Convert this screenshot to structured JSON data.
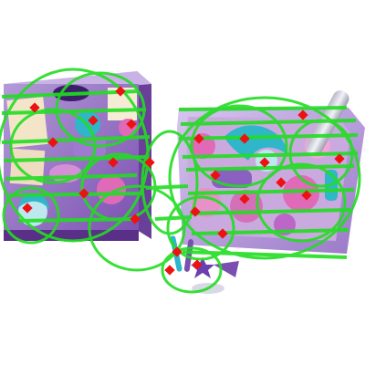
{
  "image": {
    "subject": "toy-playset-packaging-with-tracking-overlay",
    "colors": {
      "background": "#ffffff",
      "overlay_green": "#22dd22",
      "marker_red": "#ee1111",
      "box_purple": "#8c5fbf",
      "box_lilac": "#c9b3e6",
      "tray_teal": "#2fb6c9",
      "tray_pink": "#e06ab8",
      "card_cream": "#f3e6c8"
    }
  },
  "markers": [
    {
      "id": "m1"
    },
    {
      "id": "m2"
    },
    {
      "id": "m3"
    },
    {
      "id": "m4"
    },
    {
      "id": "m5"
    },
    {
      "id": "m6"
    },
    {
      "id": "m7"
    },
    {
      "id": "m8"
    },
    {
      "id": "m9"
    },
    {
      "id": "m10"
    },
    {
      "id": "m11"
    },
    {
      "id": "m12"
    },
    {
      "id": "m13"
    },
    {
      "id": "m14"
    },
    {
      "id": "m15"
    },
    {
      "id": "m16"
    },
    {
      "id": "m17"
    },
    {
      "id": "m18"
    },
    {
      "id": "m19"
    },
    {
      "id": "m20"
    },
    {
      "id": "m21"
    },
    {
      "id": "m22"
    },
    {
      "id": "m23"
    },
    {
      "id": "m24"
    }
  ]
}
